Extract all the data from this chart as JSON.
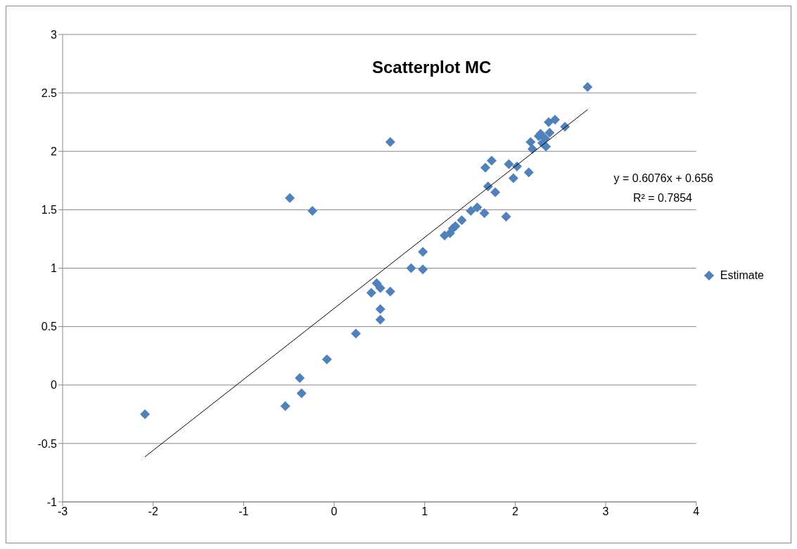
{
  "chart_data": {
    "type": "scatter",
    "title": "Scatterplot  MC",
    "xlim": [
      -3,
      4
    ],
    "xticks": [
      -3,
      -2,
      -1,
      0,
      1,
      2,
      3,
      4
    ],
    "ylim": [
      -1,
      3
    ],
    "yticks": [
      -1,
      -0.5,
      0,
      0.5,
      1,
      1.5,
      2,
      2.5,
      3
    ],
    "grid": "y",
    "legend": "right",
    "series": [
      {
        "name": "Estimate",
        "color": "#4f81bd",
        "marker": "diamond",
        "x": [
          -2.09,
          -0.54,
          -0.36,
          -0.38,
          -0.08,
          -0.49,
          -0.24,
          0.62,
          0.24,
          0.41,
          0.47,
          0.51,
          0.62,
          0.51,
          0.51,
          0.85,
          0.98,
          0.98,
          1.22,
          1.28,
          1.31,
          1.34,
          1.41,
          1.51,
          1.58,
          1.66,
          1.9,
          1.7,
          1.78,
          1.67,
          1.74,
          1.93,
          2.02,
          1.98,
          2.15,
          2.17,
          2.19,
          2.26,
          2.28,
          2.33,
          2.34,
          2.38,
          2.37,
          2.44,
          2.55,
          2.3,
          2.8
        ],
        "values": [
          -0.25,
          -0.18,
          -0.07,
          0.06,
          0.22,
          1.6,
          1.49,
          2.08,
          0.44,
          0.79,
          0.87,
          0.83,
          0.8,
          0.65,
          0.56,
          1.0,
          0.99,
          1.14,
          1.28,
          1.3,
          1.34,
          1.36,
          1.41,
          1.49,
          1.52,
          1.47,
          1.44,
          1.7,
          1.65,
          1.86,
          1.92,
          1.89,
          1.87,
          1.77,
          1.82,
          2.08,
          2.02,
          2.13,
          2.15,
          2.11,
          2.04,
          2.16,
          2.25,
          2.27,
          2.21,
          2.07,
          2.55
        ]
      },
      {
        "type": "line",
        "color": "#000000",
        "marker": "none",
        "x": [
          -2.09,
          2.8
        ],
        "values": [
          -0.614,
          2.357
        ]
      }
    ],
    "annotations": [
      "y = 0.6076x + 0.656",
      "R² = 0.7854"
    ]
  }
}
